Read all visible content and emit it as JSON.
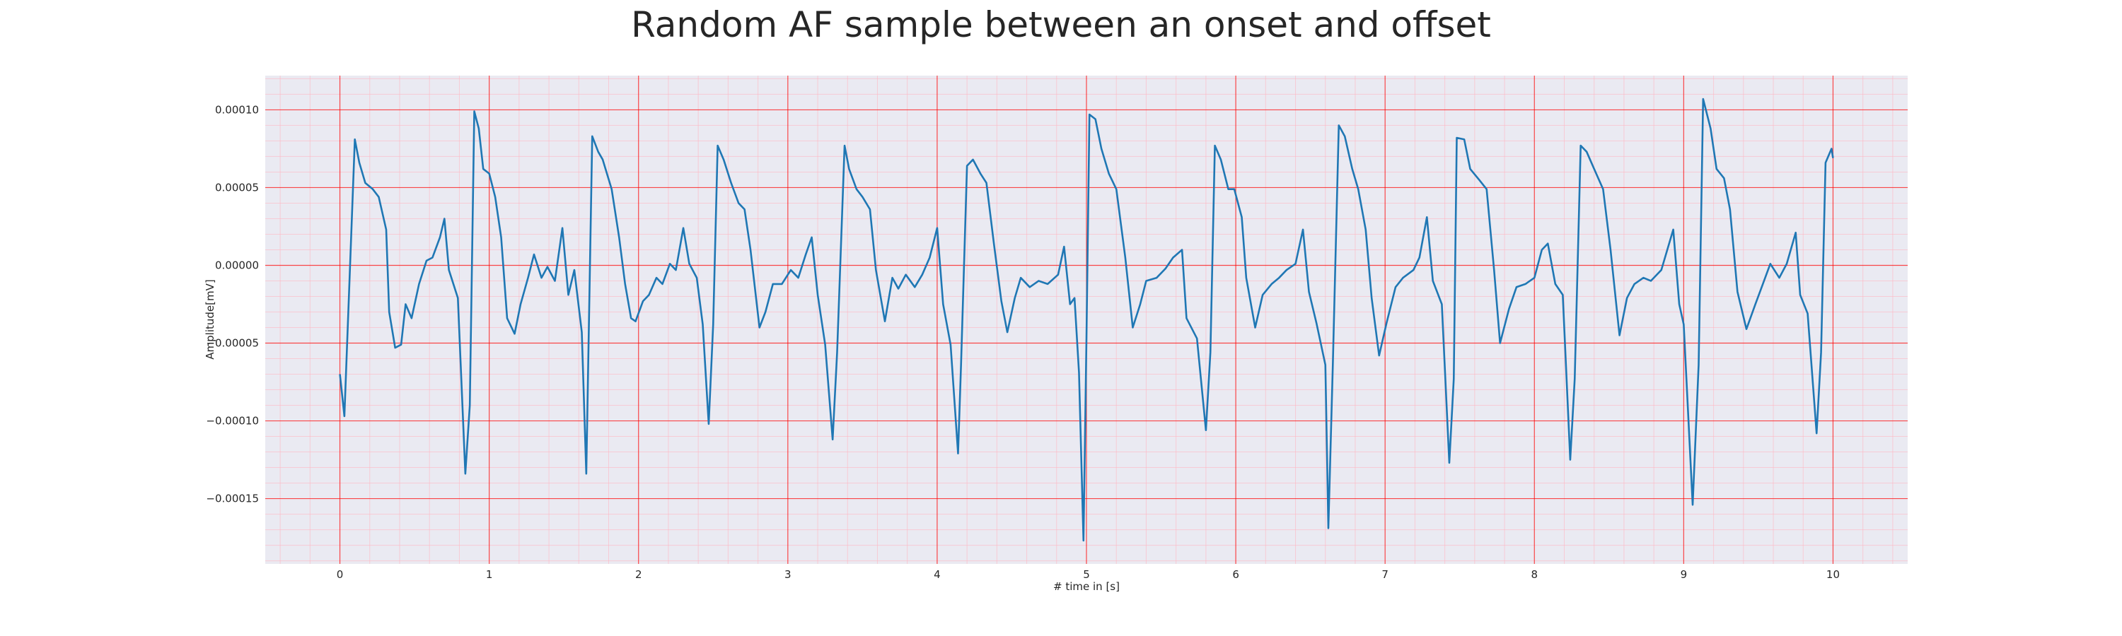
{
  "chart_data": {
    "type": "line",
    "title": "Random AF sample between an onset and offset",
    "x_label": "# time in [s]",
    "y_label": "Amplitude[mV]",
    "color": "#1f77b4",
    "grid": true,
    "minor_grid": true,
    "xlim": [
      -0.5,
      10.5
    ],
    "xticks": [
      0,
      1,
      2,
      3,
      4,
      5,
      6,
      7,
      8,
      9,
      10
    ],
    "ylim": [
      -0.000192,
      0.000122
    ],
    "yticks": [
      {
        "value": -0.00015,
        "label": "−0.00015"
      },
      {
        "value": -0.0001,
        "label": "−0.00010"
      },
      {
        "value": -5e-05,
        "label": "−0.00005"
      },
      {
        "value": 0,
        "label": "0.00000"
      },
      {
        "value": 5e-05,
        "label": "0.00005"
      },
      {
        "value": 0.0001,
        "label": "0.00010"
      }
    ],
    "x": [
      0,
      0.03,
      0.1,
      0.13,
      0.17,
      0.22,
      0.26,
      0.31,
      0.33,
      0.37,
      0.41,
      0.44,
      0.48,
      0.53,
      0.58,
      0.62,
      0.67,
      0.7,
      0.73,
      0.79,
      0.84,
      0.87,
      0.9,
      0.93,
      0.96,
      1.0,
      1.04,
      1.08,
      1.12,
      1.17,
      1.21,
      1.26,
      1.3,
      1.35,
      1.39,
      1.44,
      1.49,
      1.53,
      1.57,
      1.62,
      1.65,
      1.69,
      1.73,
      1.76,
      1.82,
      1.87,
      1.91,
      1.95,
      1.98,
      2.03,
      2.07,
      2.12,
      2.16,
      2.21,
      2.25,
      2.3,
      2.34,
      2.39,
      2.43,
      2.47,
      2.5,
      2.53,
      2.57,
      2.62,
      2.67,
      2.71,
      2.75,
      2.81,
      2.85,
      2.9,
      2.96,
      3.02,
      3.07,
      3.12,
      3.16,
      3.2,
      3.25,
      3.3,
      3.33,
      3.38,
      3.41,
      3.46,
      3.5,
      3.55,
      3.59,
      3.65,
      3.7,
      3.74,
      3.79,
      3.85,
      3.9,
      3.95,
      4.0,
      4.04,
      4.09,
      4.14,
      4.16,
      4.2,
      4.24,
      4.29,
      4.33,
      4.38,
      4.43,
      4.47,
      4.52,
      4.56,
      4.62,
      4.68,
      4.74,
      4.81,
      4.85,
      4.89,
      4.92,
      4.95,
      4.98,
      5.0,
      5.02,
      5.06,
      5.1,
      5.15,
      5.2,
      5.26,
      5.31,
      5.36,
      5.4,
      5.47,
      5.53,
      5.58,
      5.64,
      5.67,
      5.74,
      5.8,
      5.83,
      5.86,
      5.9,
      5.95,
      5.99,
      6.04,
      6.07,
      6.13,
      6.18,
      6.24,
      6.29,
      6.34,
      6.4,
      6.45,
      6.49,
      6.54,
      6.6,
      6.62,
      6.65,
      6.69,
      6.73,
      6.78,
      6.82,
      6.87,
      6.91,
      6.96,
      7.01,
      7.07,
      7.12,
      7.19,
      7.23,
      7.28,
      7.32,
      7.38,
      7.43,
      7.46,
      7.48,
      7.53,
      7.57,
      7.63,
      7.68,
      7.73,
      7.77,
      7.83,
      7.88,
      7.94,
      8.0,
      8.05,
      8.09,
      8.14,
      8.19,
      8.24,
      8.27,
      8.31,
      8.35,
      8.4,
      8.46,
      8.51,
      8.57,
      8.62,
      8.67,
      8.73,
      8.78,
      8.85,
      8.93,
      8.97,
      9.0,
      9.06,
      9.1,
      9.13,
      9.18,
      9.22,
      9.27,
      9.31,
      9.36,
      9.42,
      9.48,
      9.53,
      9.58,
      9.64,
      9.69,
      9.75,
      9.78,
      9.83,
      9.89,
      9.92,
      9.95,
      9.99,
      10.0
    ],
    "values": [
      -7e-05,
      -9.7e-05,
      8.1e-05,
      6.6e-05,
      5.3e-05,
      4.9e-05,
      4.4e-05,
      2.3e-05,
      -3e-05,
      -5.3e-05,
      -5.1e-05,
      -2.5e-05,
      -3.4e-05,
      -1.2e-05,
      3e-06,
      5e-06,
      1.8e-05,
      3e-05,
      -3e-06,
      -2.1e-05,
      -0.000134,
      -9e-05,
      9.9e-05,
      8.8e-05,
      6.2e-05,
      5.9e-05,
      4.4e-05,
      1.8e-05,
      -3.4e-05,
      -4.4e-05,
      -2.5e-05,
      -8e-06,
      7e-06,
      -8e-06,
      -1e-06,
      -1e-05,
      2.4e-05,
      -1.9e-05,
      -3e-06,
      -4.3e-05,
      -0.000134,
      8.3e-05,
      7.3e-05,
      6.8e-05,
      4.9e-05,
      1.8e-05,
      -1.2e-05,
      -3.4e-05,
      -3.6e-05,
      -2.3e-05,
      -1.9e-05,
      -8e-06,
      -1.2e-05,
      1e-06,
      -3e-06,
      2.4e-05,
      1e-06,
      -8e-06,
      -3.8e-05,
      -0.000102,
      -3.8e-05,
      7.7e-05,
      6.8e-05,
      5.3e-05,
      4e-05,
      3.6e-05,
      1e-05,
      -4e-05,
      -3e-05,
      -1.2e-05,
      -1.2e-05,
      -3e-06,
      -8e-06,
      7e-06,
      1.8e-05,
      -1.9e-05,
      -5.1e-05,
      -0.000112,
      -5.6e-05,
      7.7e-05,
      6.2e-05,
      4.9e-05,
      4.4e-05,
      3.6e-05,
      -3e-06,
      -3.6e-05,
      -8e-06,
      -1.5e-05,
      -6e-06,
      -1.4e-05,
      -6e-06,
      5e-06,
      2.4e-05,
      -2.5e-05,
      -5.1e-05,
      -0.000121,
      -6.4e-05,
      6.4e-05,
      6.8e-05,
      5.9e-05,
      5.3e-05,
      1.4e-05,
      -2.3e-05,
      -4.3e-05,
      -2.1e-05,
      -8e-06,
      -1.4e-05,
      -1e-05,
      -1.2e-05,
      -6e-06,
      1.2e-05,
      -2.5e-05,
      -2.1e-05,
      -6.9e-05,
      -0.000177,
      -4.7e-05,
      9.7e-05,
      9.4e-05,
      7.5e-05,
      5.9e-05,
      4.9e-05,
      5e-06,
      -4e-05,
      -2.5e-05,
      -1e-05,
      -8e-06,
      -2e-06,
      5e-06,
      1e-05,
      -3.4e-05,
      -4.7e-05,
      -0.000106,
      -5.6e-05,
      7.7e-05,
      6.8e-05,
      4.9e-05,
      4.9e-05,
      3.1e-05,
      -8e-06,
      -4e-05,
      -1.9e-05,
      -1.2e-05,
      -8e-06,
      -3e-06,
      1e-06,
      2.3e-05,
      -1.7e-05,
      -3.7e-05,
      -6.4e-05,
      -0.000169,
      -6.4e-05,
      9e-05,
      8.3e-05,
      6.2e-05,
      4.9e-05,
      2.3e-05,
      -2.1e-05,
      -5.8e-05,
      -3.7e-05,
      -1.4e-05,
      -8e-06,
      -3e-06,
      5e-06,
      3.1e-05,
      -1e-05,
      -2.5e-05,
      -0.000127,
      -7.3e-05,
      8.2e-05,
      8.1e-05,
      6.2e-05,
      5.5e-05,
      4.9e-05,
      -3e-06,
      -5e-05,
      -2.8e-05,
      -1.4e-05,
      -1.2e-05,
      -8e-06,
      1e-05,
      1.4e-05,
      -1.2e-05,
      -1.9e-05,
      -0.000125,
      -7.3e-05,
      7.7e-05,
      7.3e-05,
      6.2e-05,
      4.9e-05,
      1e-05,
      -4.5e-05,
      -2.1e-05,
      -1.2e-05,
      -8e-06,
      -1e-05,
      -3e-06,
      2.3e-05,
      -2.5e-05,
      -3.8e-05,
      -0.000154,
      -6.4e-05,
      0.000107,
      8.8e-05,
      6.2e-05,
      5.6e-05,
      3.6e-05,
      -1.7e-05,
      -4.1e-05,
      -2.5e-05,
      -1.2e-05,
      1e-06,
      -8e-06,
      1e-06,
      2.1e-05,
      -1.9e-05,
      -3.1e-05,
      -0.000108,
      -5.6e-05,
      6.6e-05,
      7.5e-05,
      6.9e-05
    ]
  }
}
